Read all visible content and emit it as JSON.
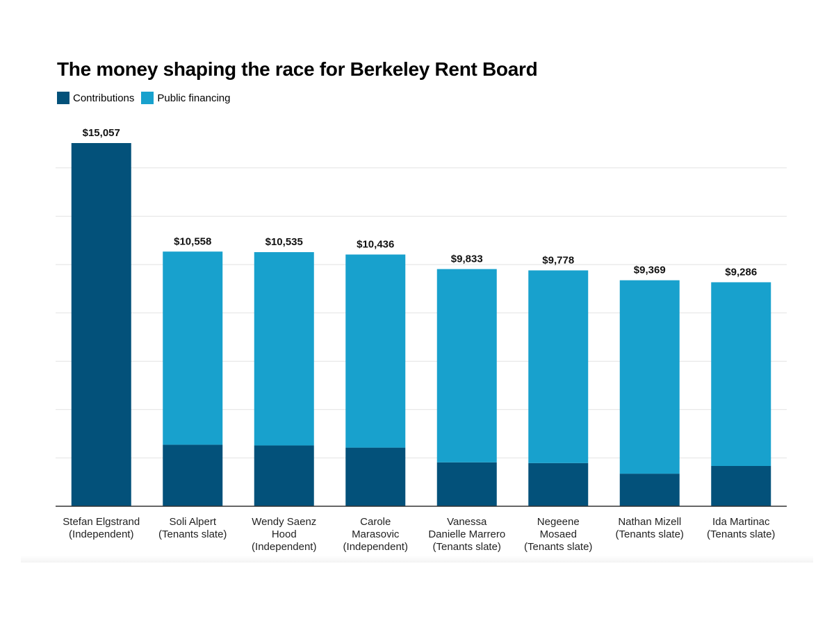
{
  "chart_data": {
    "type": "bar",
    "stacked": true,
    "title": "The money shaping the race for Berkeley Rent Board",
    "xlabel": "",
    "ylabel": "",
    "ylim": [
      0,
      15057
    ],
    "grid": true,
    "legend_position": "top-left",
    "categories": [
      [
        "Stefan Elgstrand",
        "(Independent)"
      ],
      [
        "Soli Alpert",
        "(Tenants slate)"
      ],
      [
        "Wendy Saenz",
        "Hood",
        "(Independent)"
      ],
      [
        "Carole",
        "Marasovic",
        "(Independent)"
      ],
      [
        "Vanessa",
        "Danielle Marrero",
        "(Tenants slate)"
      ],
      [
        "Negeene",
        "Mosaed",
        "(Tenants slate)"
      ],
      [
        "Nathan Mizell",
        "(Tenants slate)"
      ],
      [
        "Ida Martinac",
        "(Tenants slate)"
      ]
    ],
    "series": [
      {
        "name": "Contributions",
        "color": "#03517a",
        "values": [
          15057,
          2550,
          2520,
          2430,
          1820,
          1790,
          1350,
          1670
        ]
      },
      {
        "name": "Public financing",
        "color": "#18a1cd",
        "values": [
          0,
          8008,
          8015,
          8006,
          8013,
          7988,
          8019,
          7616
        ]
      }
    ],
    "totals": [
      "$15,057",
      "$10,558",
      "$10,535",
      "$10,436",
      "$9,833",
      "$9,778",
      "$9,369",
      "$9,286"
    ]
  }
}
